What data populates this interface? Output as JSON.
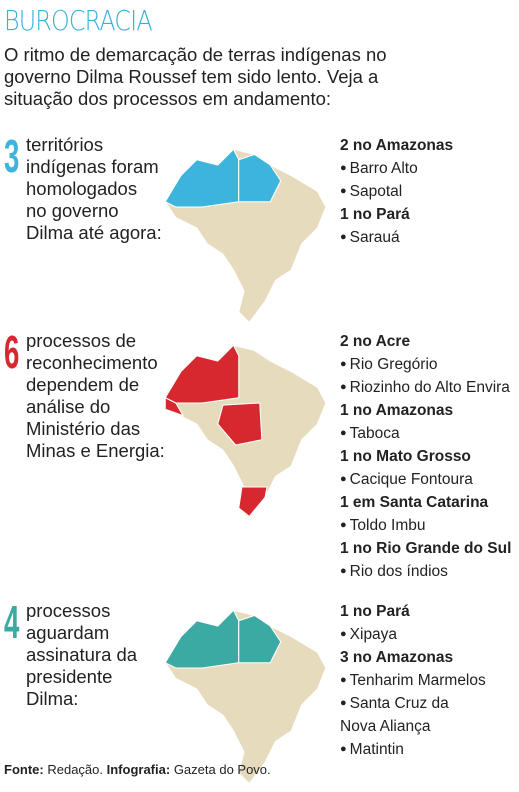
{
  "header": {
    "title": "BUROCRACIA",
    "intro": [
      "O ritmo de demarcação de terras indígenas no",
      "governo Dilma Roussef tem sido lento. Veja a",
      "situação dos processos em andamento:"
    ]
  },
  "sections": [
    {
      "number": "3",
      "lines": [
        "territórios",
        "indígenas foram",
        "homologados",
        "no governo",
        "Dilma até agora:"
      ],
      "groups": [
        {
          "heading": "2 no Amazonas",
          "items": [
            "Barro Alto",
            "Sapotal"
          ]
        },
        {
          "heading": "1 no Pará",
          "items": [
            "Sarauá"
          ]
        }
      ]
    },
    {
      "number": "6",
      "lines": [
        "processos de",
        "reconhecimento",
        "dependem de",
        "análise do",
        "Ministério das",
        "Minas e Energia:"
      ],
      "groups": [
        {
          "heading": "2 no Acre",
          "items": [
            "Rio Gregório",
            "Riozinho do Alto Envira"
          ]
        },
        {
          "heading": "1 no Amazonas",
          "items": [
            "Taboca"
          ]
        },
        {
          "heading": "1 no Mato Grosso",
          "items": [
            "Cacique Fontoura"
          ]
        },
        {
          "heading": "1 em Santa Catarina",
          "items": [
            "Toldo Imbu"
          ]
        },
        {
          "heading": "1 no Rio Grande do Sul",
          "items": [
            "Rio dos índios"
          ]
        }
      ]
    },
    {
      "number": "4",
      "lines": [
        "processos",
        "aguardam",
        "assinatura da",
        "presidente",
        "Dilma:"
      ],
      "groups": [
        {
          "heading": "1 no Pará",
          "items": [
            "Xipaya"
          ]
        },
        {
          "heading": "3 no Amazonas",
          "items": [
            "Tenharim Marmelos",
            "Santa Cruz da Nova Aliança",
            "Matintin"
          ]
        }
      ]
    }
  ],
  "footer": {
    "source_label": "Fonte:",
    "source": "Redação.",
    "credit_label": "Infografia:",
    "credit": "Gazeta do Povo."
  }
}
